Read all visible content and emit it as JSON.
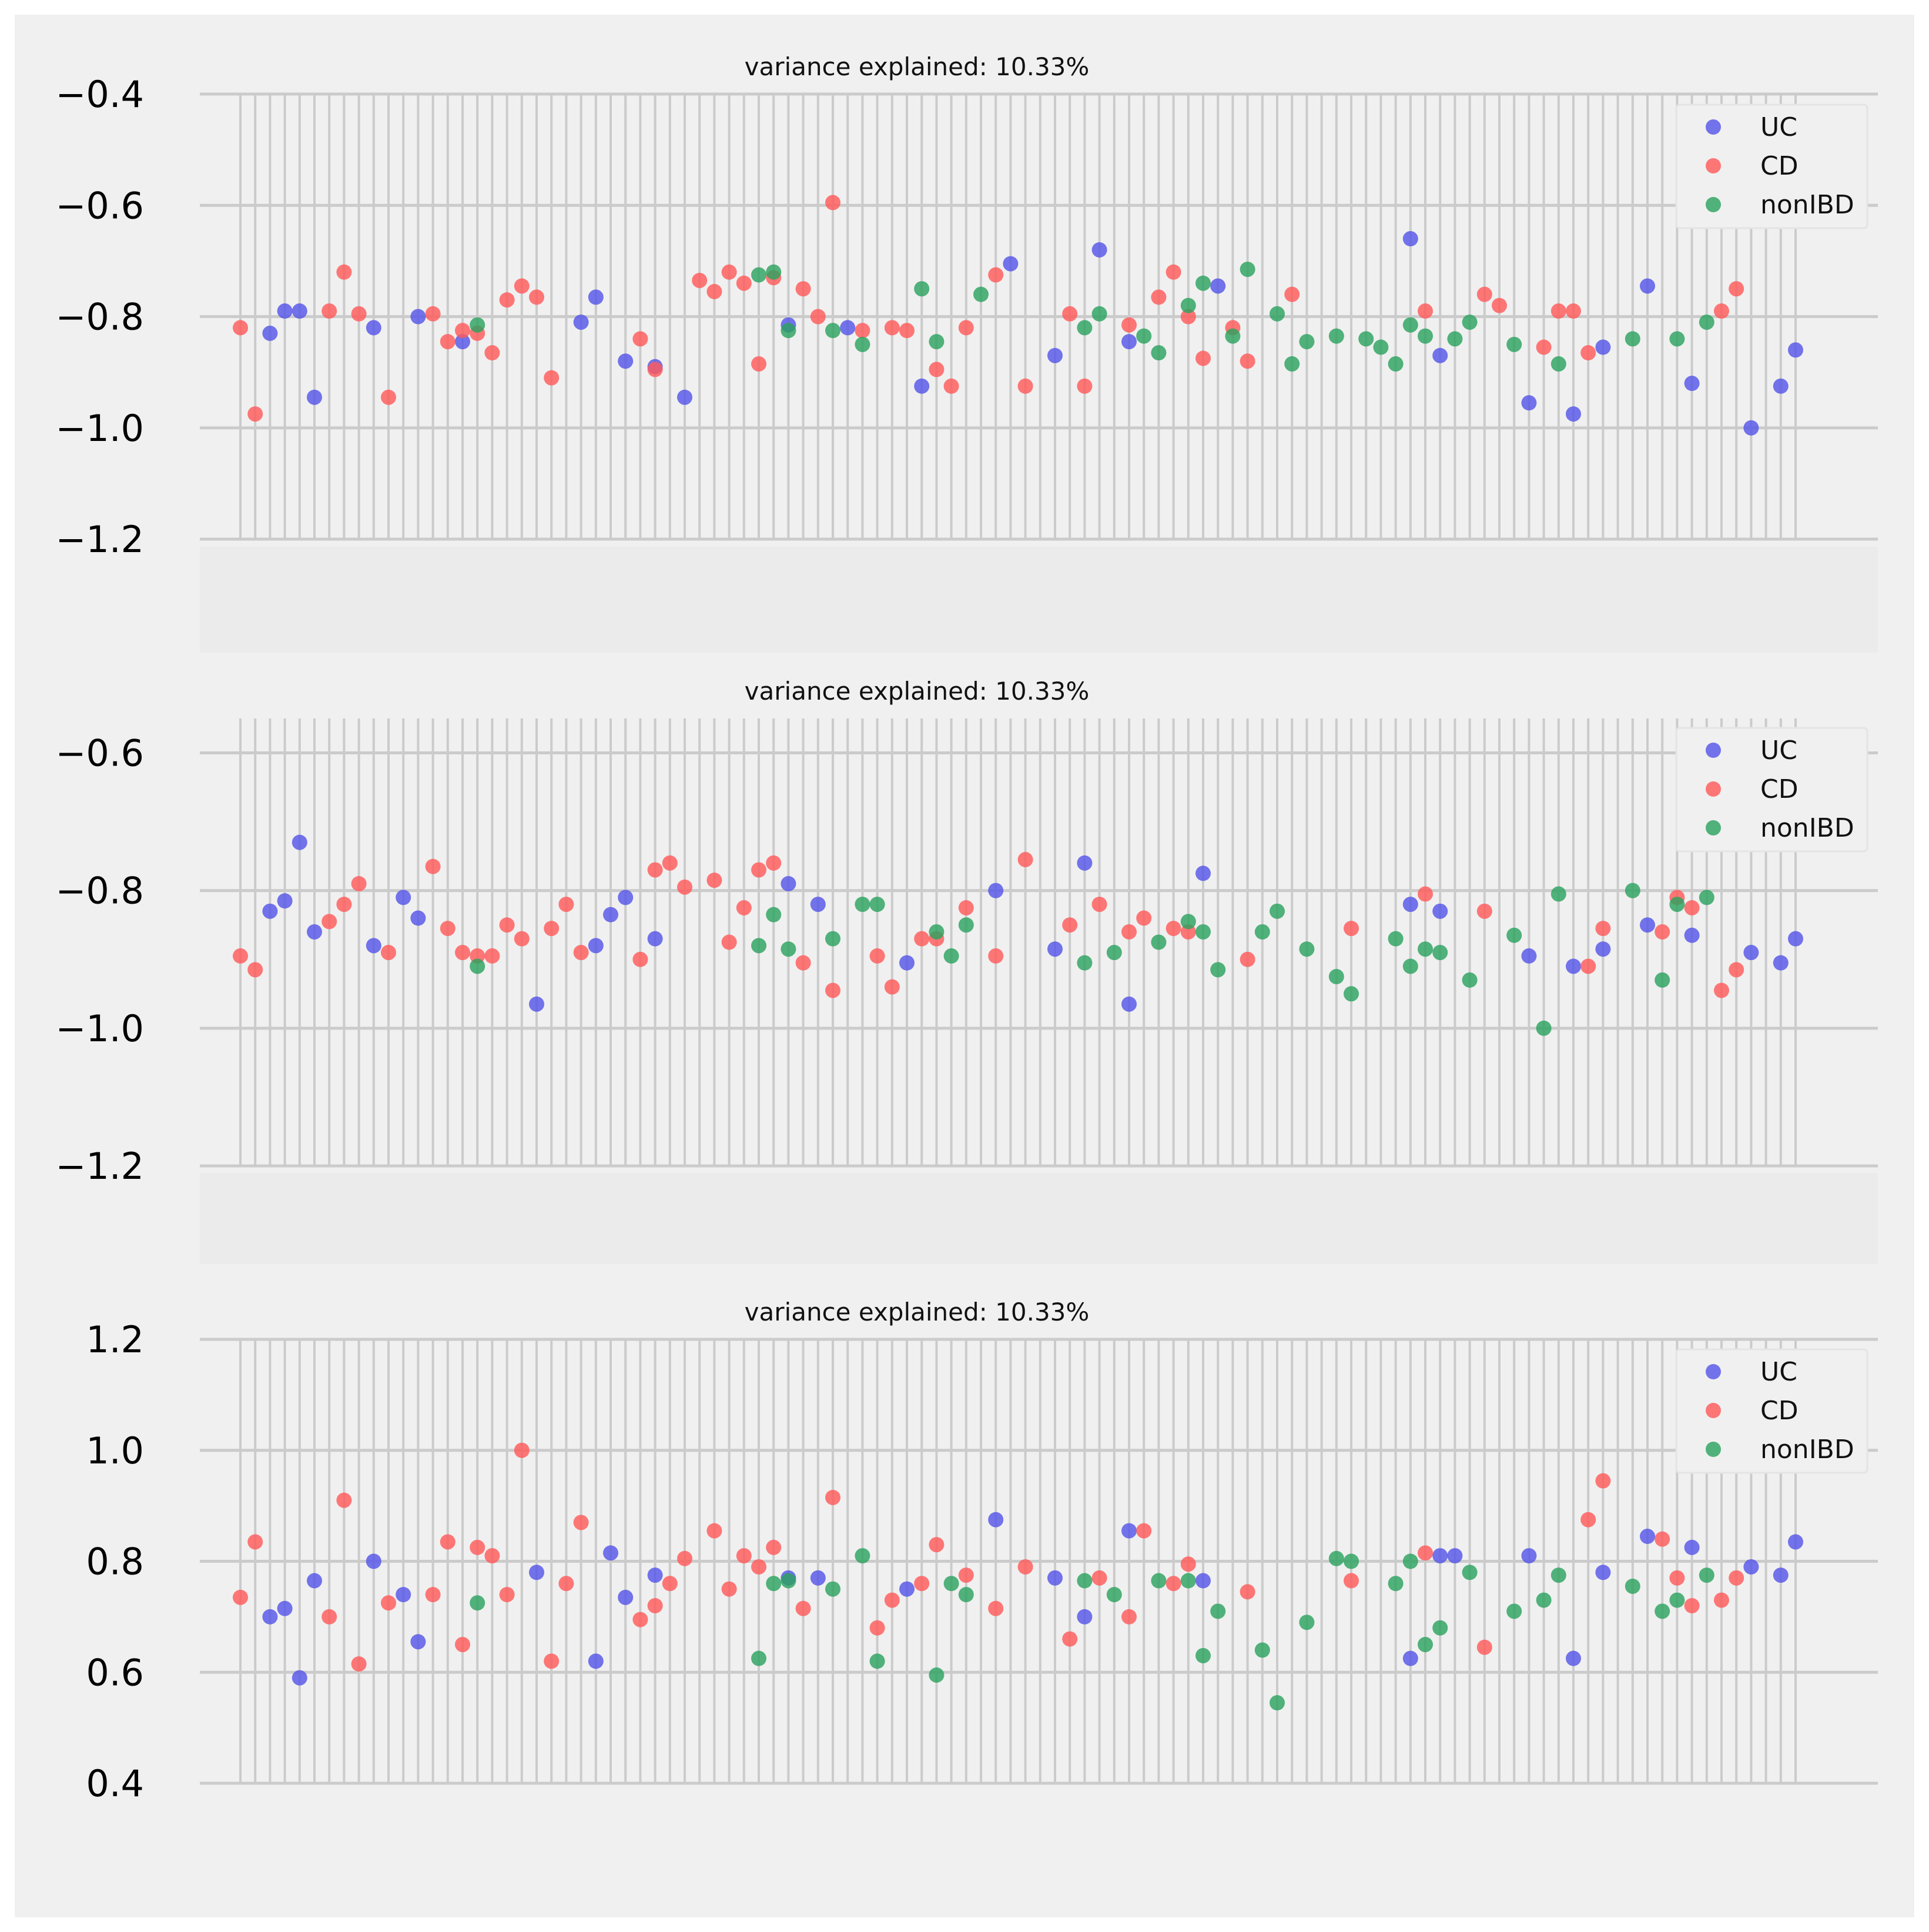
{
  "colors": {
    "figure_bg": "#f0f0f0",
    "grid": "#cbcbcb",
    "UC": "#5555e8",
    "CD": "#ff5a5a",
    "nonIBD": "#2ca25f"
  },
  "chart_data": [
    {
      "type": "scatter",
      "title": "variance explained: 10.33%",
      "ylim": [
        -1.2,
        -0.4
      ],
      "yticks": [
        -0.4,
        -0.6,
        -0.8,
        -1.0,
        -1.2
      ],
      "ytick_labels": [
        "−0.4",
        "−0.6",
        "−0.8",
        "−1.0",
        "−1.2"
      ],
      "n_x": 106,
      "legend": [
        "UC",
        "CD",
        "nonIBD"
      ],
      "legend_position": "top-right",
      "series": [
        {
          "name": "UC",
          "x": [
            2,
            3,
            4,
            5,
            9,
            12,
            15,
            23,
            24,
            26,
            28,
            30,
            37,
            41,
            46,
            52,
            55,
            58,
            60,
            66,
            79,
            81,
            87,
            90,
            92,
            95,
            98,
            102,
            104,
            105
          ],
          "y": [
            -0.83,
            -0.79,
            -0.79,
            -0.945,
            -0.82,
            -0.8,
            -0.845,
            -0.81,
            -0.765,
            -0.88,
            -0.89,
            -0.945,
            -0.815,
            -0.82,
            -0.925,
            -0.705,
            -0.87,
            -0.68,
            -0.845,
            -0.745,
            -0.66,
            -0.87,
            -0.955,
            -0.975,
            -0.855,
            -0.745,
            -0.92,
            -1.0,
            -0.925,
            -0.86
          ]
        },
        {
          "name": "CD",
          "x": [
            0,
            1,
            6,
            7,
            8,
            10,
            13,
            14,
            15,
            16,
            17,
            18,
            19,
            20,
            21,
            27,
            28,
            31,
            32,
            33,
            34,
            35,
            36,
            38,
            39,
            40,
            42,
            44,
            45,
            47,
            48,
            49,
            51,
            53,
            56,
            57,
            60,
            62,
            63,
            64,
            65,
            67,
            68,
            71,
            80,
            84,
            85,
            88,
            89,
            90,
            91,
            100,
            101
          ],
          "y": [
            -0.82,
            -0.975,
            -0.79,
            -0.72,
            -0.795,
            -0.945,
            -0.795,
            -0.845,
            -0.825,
            -0.83,
            -0.865,
            -0.77,
            -0.745,
            -0.765,
            -0.91,
            -0.84,
            -0.895,
            -0.735,
            -0.755,
            -0.72,
            -0.74,
            -0.885,
            -0.73,
            -0.75,
            -0.8,
            -0.595,
            -0.825,
            -0.82,
            -0.825,
            -0.895,
            -0.925,
            -0.82,
            -0.725,
            -0.925,
            -0.795,
            -0.925,
            -0.815,
            -0.765,
            -0.72,
            -0.8,
            -0.875,
            -0.82,
            -0.88,
            -0.76,
            -0.79,
            -0.76,
            -0.78,
            -0.855,
            -0.79,
            -0.79,
            -0.865,
            -0.79,
            -0.75
          ]
        },
        {
          "name": "nonIBD",
          "x": [
            16,
            35,
            36,
            37,
            40,
            42,
            46,
            47,
            50,
            57,
            58,
            61,
            62,
            64,
            65,
            67,
            68,
            70,
            71,
            72,
            74,
            76,
            77,
            78,
            79,
            80,
            82,
            83,
            86,
            89,
            94,
            97,
            99
          ],
          "y": [
            -0.815,
            -0.725,
            -0.72,
            -0.825,
            -0.825,
            -0.85,
            -0.75,
            -0.845,
            -0.76,
            -0.82,
            -0.795,
            -0.835,
            -0.865,
            -0.78,
            -0.74,
            -0.835,
            -0.715,
            -0.795,
            -0.885,
            -0.845,
            -0.835,
            -0.84,
            -0.855,
            -0.885,
            -0.815,
            -0.835,
            -0.84,
            -0.81,
            -0.85,
            -0.885,
            -0.84,
            -0.84,
            -0.81
          ]
        }
      ]
    },
    {
      "type": "scatter",
      "title": "variance explained: 10.33%",
      "ylim": [
        -1.2,
        -0.55
      ],
      "yticks": [
        -0.6,
        -0.8,
        -1.0,
        -1.2
      ],
      "ytick_labels": [
        "−0.6",
        "−0.8",
        "−1.0",
        "−1.2"
      ],
      "n_x": 106,
      "legend": [
        "UC",
        "CD",
        "nonIBD"
      ],
      "legend_position": "top-right",
      "series": [
        {
          "name": "UC",
          "x": [
            2,
            3,
            4,
            5,
            9,
            11,
            12,
            20,
            24,
            25,
            26,
            28,
            37,
            39,
            45,
            51,
            55,
            57,
            60,
            65,
            79,
            81,
            87,
            90,
            92,
            95,
            98,
            102,
            104,
            105
          ],
          "y": [
            -0.83,
            -0.815,
            -0.73,
            -0.86,
            -0.88,
            -0.81,
            -0.84,
            -0.965,
            -0.88,
            -0.835,
            -0.81,
            -0.87,
            -0.79,
            -0.82,
            -0.905,
            -0.8,
            -0.885,
            -0.76,
            -0.965,
            -0.775,
            -0.82,
            -0.83,
            -0.895,
            -0.91,
            -0.885,
            -0.85,
            -0.865,
            -0.89,
            -0.905,
            -0.87
          ]
        },
        {
          "name": "CD",
          "x": [
            0,
            1,
            6,
            7,
            8,
            10,
            13,
            14,
            15,
            16,
            17,
            18,
            19,
            21,
            22,
            23,
            27,
            28,
            29,
            30,
            32,
            33,
            34,
            35,
            36,
            38,
            40,
            43,
            44,
            46,
            47,
            49,
            51,
            53,
            56,
            58,
            60,
            61,
            63,
            64,
            68,
            75,
            80,
            84,
            91,
            92,
            96,
            97,
            98,
            100,
            101
          ],
          "y": [
            -0.895,
            -0.915,
            -0.845,
            -0.82,
            -0.79,
            -0.89,
            -0.765,
            -0.855,
            -0.89,
            -0.895,
            -0.895,
            -0.85,
            -0.87,
            -0.855,
            -0.82,
            -0.89,
            -0.9,
            -0.77,
            -0.76,
            -0.795,
            -0.785,
            -0.875,
            -0.825,
            -0.77,
            -0.76,
            -0.905,
            -0.945,
            -0.895,
            -0.94,
            -0.87,
            -0.87,
            -0.825,
            -0.895,
            -0.755,
            -0.85,
            -0.82,
            -0.86,
            -0.84,
            -0.855,
            -0.86,
            -0.9,
            -0.855,
            -0.805,
            -0.83,
            -0.91,
            -0.855,
            -0.86,
            -0.81,
            -0.825,
            -0.945,
            -0.915
          ]
        },
        {
          "name": "nonIBD",
          "x": [
            16,
            35,
            36,
            37,
            40,
            42,
            43,
            47,
            48,
            49,
            57,
            59,
            62,
            64,
            65,
            66,
            69,
            70,
            72,
            74,
            75,
            78,
            79,
            80,
            81,
            83,
            86,
            88,
            89,
            94,
            96,
            97,
            99
          ],
          "y": [
            -0.91,
            -0.88,
            -0.835,
            -0.885,
            -0.87,
            -0.82,
            -0.82,
            -0.86,
            -0.895,
            -0.85,
            -0.905,
            -0.89,
            -0.875,
            -0.845,
            -0.86,
            -0.915,
            -0.86,
            -0.83,
            -0.885,
            -0.925,
            -0.95,
            -0.87,
            -0.91,
            -0.885,
            -0.89,
            -0.93,
            -0.865,
            -1.0,
            -0.805,
            -0.8,
            -0.93,
            -0.82,
            -0.81
          ]
        }
      ]
    },
    {
      "type": "scatter",
      "title": "variance explained: 10.33%",
      "ylim": [
        0.4,
        1.2
      ],
      "yticks": [
        1.2,
        1.0,
        0.8,
        0.6,
        0.4
      ],
      "ytick_labels": [
        "1.2",
        "1.0",
        "0.8",
        "0.6",
        "0.4"
      ],
      "n_x": 106,
      "legend": [
        "UC",
        "CD",
        "nonIBD"
      ],
      "legend_position": "top-right",
      "series": [
        {
          "name": "UC",
          "x": [
            2,
            3,
            4,
            5,
            9,
            11,
            12,
            20,
            24,
            25,
            26,
            28,
            37,
            39,
            45,
            51,
            55,
            57,
            60,
            65,
            79,
            81,
            82,
            87,
            90,
            92,
            95,
            98,
            102,
            104,
            105
          ],
          "y": [
            0.7,
            0.715,
            0.59,
            0.765,
            0.8,
            0.74,
            0.655,
            0.78,
            0.62,
            0.815,
            0.735,
            0.775,
            0.77,
            0.77,
            0.75,
            0.875,
            0.77,
            0.7,
            0.855,
            0.765,
            0.625,
            0.81,
            0.81,
            0.81,
            0.625,
            0.78,
            0.845,
            0.825,
            0.79,
            0.775,
            0.835
          ]
        },
        {
          "name": "CD",
          "x": [
            0,
            1,
            6,
            7,
            8,
            10,
            13,
            14,
            15,
            16,
            17,
            18,
            19,
            21,
            22,
            23,
            27,
            28,
            29,
            30,
            32,
            33,
            34,
            35,
            36,
            38,
            40,
            43,
            44,
            46,
            47,
            49,
            51,
            53,
            56,
            58,
            60,
            61,
            63,
            64,
            68,
            75,
            80,
            84,
            91,
            92,
            96,
            97,
            98,
            100,
            101
          ],
          "y": [
            0.735,
            0.835,
            0.7,
            0.91,
            0.615,
            0.725,
            0.74,
            0.835,
            0.65,
            0.825,
            0.81,
            0.74,
            1.0,
            0.62,
            0.76,
            0.87,
            0.695,
            0.72,
            0.76,
            0.805,
            0.855,
            0.75,
            0.81,
            0.79,
            0.825,
            0.715,
            0.915,
            0.68,
            0.73,
            0.76,
            0.83,
            0.775,
            0.715,
            0.79,
            0.66,
            0.77,
            0.7,
            0.855,
            0.76,
            0.795,
            0.745,
            0.765,
            0.815,
            0.645,
            0.875,
            0.945,
            0.84,
            0.77,
            0.72,
            0.73,
            0.77
          ]
        },
        {
          "name": "nonIBD",
          "x": [
            16,
            35,
            36,
            37,
            40,
            42,
            43,
            47,
            48,
            49,
            57,
            59,
            62,
            64,
            65,
            66,
            69,
            70,
            72,
            74,
            75,
            78,
            79,
            80,
            81,
            83,
            86,
            88,
            89,
            94,
            96,
            97,
            99
          ],
          "y": [
            0.725,
            0.625,
            0.76,
            0.765,
            0.75,
            0.81,
            0.62,
            0.595,
            0.76,
            0.74,
            0.765,
            0.74,
            0.765,
            0.765,
            0.63,
            0.71,
            0.64,
            0.545,
            0.69,
            0.805,
            0.8,
            0.76,
            0.8,
            0.65,
            0.68,
            0.78,
            0.71,
            0.73,
            0.775,
            0.755,
            0.71,
            0.73,
            0.775
          ]
        }
      ]
    }
  ]
}
